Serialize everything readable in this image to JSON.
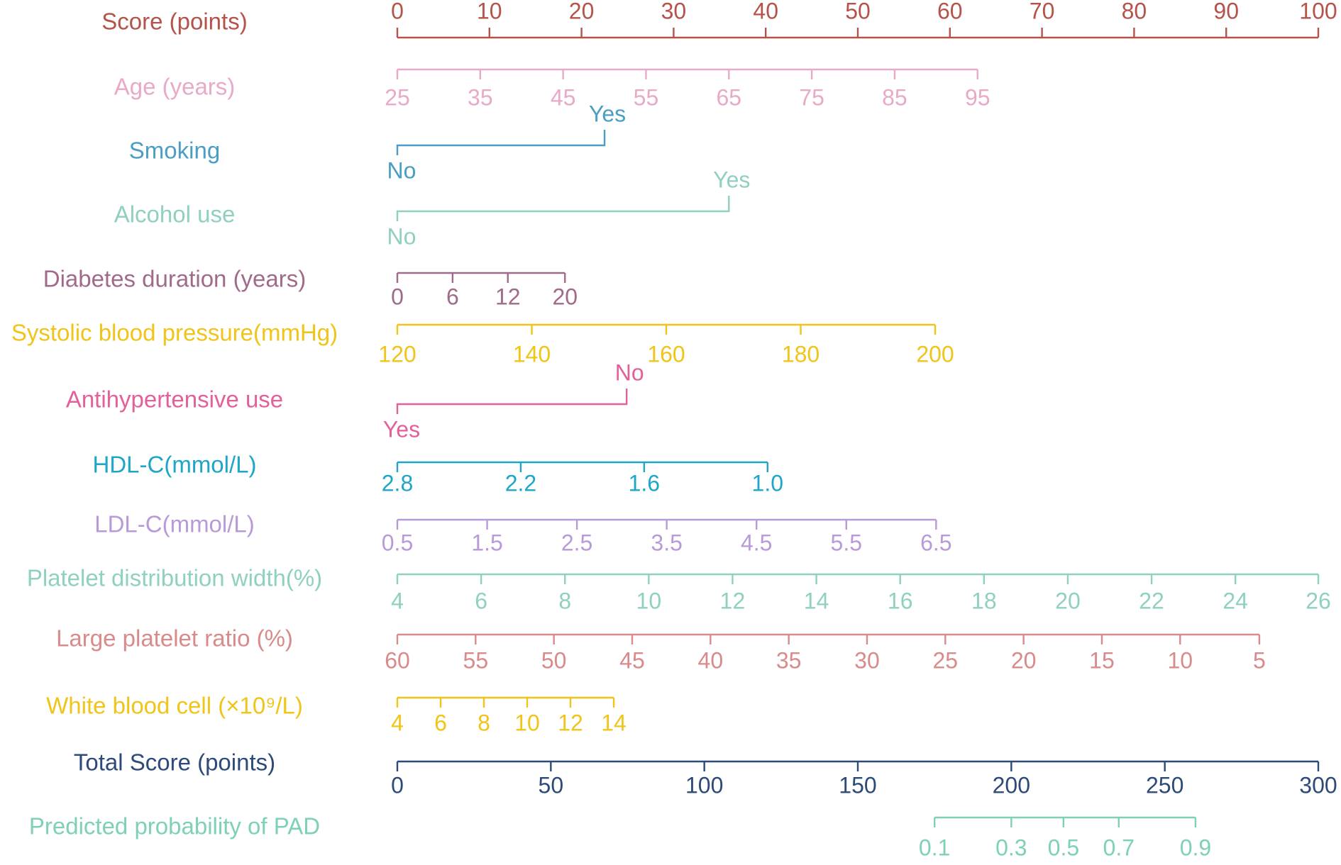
{
  "chart_data": {
    "type": "nomogram",
    "rows": [
      {
        "label": "Score (points)",
        "color": "#b5534a",
        "kind": "continuous",
        "ticks_side": "above",
        "tick_labels": [
          "0",
          "10",
          "20",
          "30",
          "40",
          "50",
          "60",
          "70",
          "80",
          "90",
          "100"
        ],
        "tick_points": [
          0,
          10,
          20,
          30,
          40,
          50,
          60,
          70,
          80,
          90,
          100
        ]
      },
      {
        "label": "Age (years)",
        "color": "#e8aac8",
        "kind": "continuous",
        "ticks_side": "below",
        "tick_labels": [
          "25",
          "35",
          "45",
          "55",
          "65",
          "75",
          "85",
          "95"
        ],
        "tick_points": [
          0,
          9,
          18,
          27,
          36,
          45,
          54,
          63
        ]
      },
      {
        "label": "Smoking",
        "color": "#4a9ec4",
        "kind": "binary",
        "low_label": "No",
        "low_points": 0,
        "high_label": "Yes",
        "high_points": 22.5
      },
      {
        "label": "Alcohol use",
        "color": "#8fd0c0",
        "kind": "binary",
        "low_label": "No",
        "low_points": 0,
        "high_label": "Yes",
        "high_points": 36
      },
      {
        "label": "Diabetes duration (years)",
        "color": "#a06a8a",
        "kind": "continuous",
        "ticks_side": "below",
        "tick_labels": [
          "0",
          "6",
          "12",
          "20"
        ],
        "tick_points": [
          0,
          6,
          12,
          18.2
        ]
      },
      {
        "label": "Systolic blood pressure(mmHg)",
        "color": "#f0c418",
        "kind": "continuous",
        "ticks_side": "below",
        "tick_labels": [
          "120",
          "140",
          "160",
          "180",
          "200"
        ],
        "tick_points": [
          0,
          14.6,
          29.2,
          43.8,
          58.4
        ]
      },
      {
        "label": "Antihypertensive use",
        "color": "#e2619a",
        "kind": "binary",
        "low_label": "Yes",
        "low_points": 0,
        "high_label": "No",
        "high_points": 24.9
      },
      {
        "label": "HDL-C(mmol/L)",
        "color": "#1ea6c8",
        "kind": "continuous",
        "ticks_side": "below",
        "tick_labels": [
          "2.8",
          "2.2",
          "1.6",
          "1.0"
        ],
        "tick_points": [
          0,
          13.4,
          26.8,
          40.2
        ]
      },
      {
        "label": "LDL-C(mmol/L)",
        "color": "#b89ad8",
        "kind": "continuous",
        "ticks_side": "below",
        "tick_labels": [
          "0.5",
          "1.5",
          "2.5",
          "3.5",
          "4.5",
          "5.5",
          "6.5"
        ],
        "tick_points": [
          0,
          9.75,
          19.5,
          29.25,
          39,
          48.75,
          58.5
        ]
      },
      {
        "label": "Platelet distribution width(%)",
        "color": "#8fd0c0",
        "kind": "continuous",
        "ticks_side": "below",
        "tick_labels": [
          "4",
          "6",
          "8",
          "10",
          "12",
          "14",
          "16",
          "18",
          "20",
          "22",
          "24",
          "26"
        ],
        "tick_points": [
          0,
          9.1,
          18.2,
          27.3,
          36.4,
          45.5,
          54.6,
          63.7,
          72.8,
          81.9,
          91,
          100
        ]
      },
      {
        "label": "Large platelet ratio (%)",
        "color": "#d98a8a",
        "kind": "continuous",
        "ticks_side": "below",
        "tick_labels": [
          "60",
          "55",
          "50",
          "45",
          "40",
          "35",
          "30",
          "25",
          "20",
          "15",
          "10",
          "5"
        ],
        "tick_points": [
          0,
          8.5,
          17,
          25.5,
          34,
          42.5,
          51,
          59.5,
          68,
          76.5,
          85,
          93.6
        ]
      },
      {
        "label": "White blood cell (×10⁹/L)",
        "color": "#f0c418",
        "kind": "continuous",
        "ticks_side": "below",
        "tick_labels": [
          "4",
          "6",
          "8",
          "10",
          "12",
          "14"
        ],
        "tick_points": [
          0,
          4.7,
          9.4,
          14.1,
          18.8,
          23.5
        ]
      },
      {
        "label": "Total Score (points)",
        "color": "#2c4a7a",
        "kind": "continuous",
        "ticks_side": "below",
        "tick_labels": [
          "0",
          "50",
          "100",
          "150",
          "200",
          "250",
          "300"
        ],
        "tick_points": [
          0,
          50,
          100,
          150,
          200,
          250,
          300
        ],
        "scale_max": 300
      },
      {
        "label": "Predicted probability of PAD",
        "color": "#7ed0b8",
        "kind": "continuous",
        "ticks_side": "below",
        "tick_labels": [
          "0.1",
          "0.3",
          "0.5",
          "0.7",
          "0.9"
        ],
        "tick_points": [
          175,
          200,
          217,
          235,
          260
        ],
        "scale_max": 300
      }
    ]
  }
}
